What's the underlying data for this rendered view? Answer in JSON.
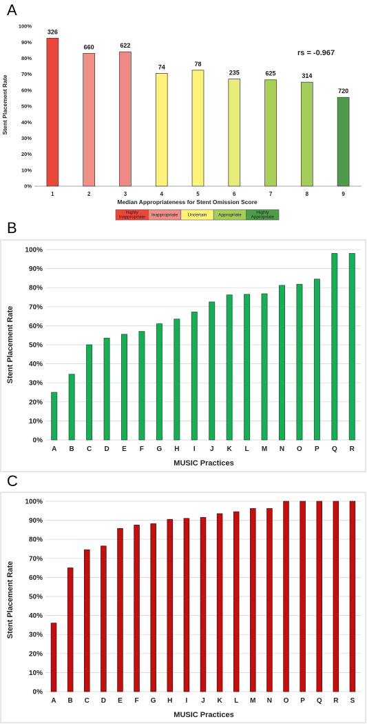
{
  "chart_data": [
    {
      "panel_label": "A",
      "type": "bar",
      "categories": [
        "1",
        "2",
        "3",
        "4",
        "5",
        "6",
        "7",
        "8",
        "9"
      ],
      "values": [
        0.925,
        0.83,
        0.84,
        0.705,
        0.725,
        0.67,
        0.665,
        0.65,
        0.555
      ],
      "bar_labels": [
        "326",
        "660",
        "622",
        "74",
        "78",
        "235",
        "625",
        "314",
        "720"
      ],
      "bar_colors": [
        "#e8473a",
        "#ee8f88",
        "#ee8a86",
        "#fdf37a",
        "#fdf37a",
        "#e6ec7c",
        "#aacf56",
        "#a4cb5c",
        "#4e9c4a"
      ],
      "xlabel": "Median Appropriateness for Stent Omission Score",
      "ylabel": "Stent Placement Rate",
      "ylim": [
        0,
        1
      ],
      "yticks": [
        "0%",
        "10%",
        "20%",
        "30%",
        "40%",
        "50%",
        "60%",
        "70%",
        "80%",
        "90%",
        "100%"
      ],
      "annotation": "rs = -0.967",
      "grid": false,
      "legend": [
        {
          "label": "Highly Inappropriate",
          "color": "#e8473a"
        },
        {
          "label": "Inappropriate",
          "color": "#ee8f88"
        },
        {
          "label": "Uncertain",
          "color": "#fdf37a"
        },
        {
          "label": "Appropriate",
          "color": "#a4cb5c"
        },
        {
          "label": "Highly Appropriate",
          "color": "#4e9c4a"
        }
      ]
    },
    {
      "panel_label": "B",
      "type": "bar",
      "categories": [
        "A",
        "B",
        "C",
        "D",
        "E",
        "F",
        "G",
        "H",
        "I",
        "J",
        "K",
        "L",
        "M",
        "N",
        "O",
        "P",
        "Q",
        "R"
      ],
      "values": [
        0.25,
        0.345,
        0.5,
        0.535,
        0.555,
        0.57,
        0.61,
        0.635,
        0.672,
        0.725,
        0.762,
        0.765,
        0.768,
        0.812,
        0.818,
        0.845,
        0.98,
        0.98
      ],
      "bar_color": "#1aad58",
      "xlabel": "MUSIC Practices",
      "ylabel": "Stent Placement Rate",
      "ylim": [
        0,
        1
      ],
      "yticks": [
        "0%",
        "10%",
        "20%",
        "30%",
        "40%",
        "50%",
        "60%",
        "70%",
        "80%",
        "90%",
        "100%"
      ],
      "grid": true
    },
    {
      "panel_label": "C",
      "type": "bar",
      "categories": [
        "A",
        "B",
        "C",
        "D",
        "E",
        "F",
        "G",
        "H",
        "I",
        "J",
        "K",
        "L",
        "M",
        "N",
        "O",
        "P",
        "Q",
        "R",
        "S"
      ],
      "values": [
        0.36,
        0.65,
        0.745,
        0.765,
        0.857,
        0.875,
        0.882,
        0.905,
        0.91,
        0.915,
        0.935,
        0.945,
        0.962,
        0.962,
        1.0,
        1.0,
        1.0,
        1.0,
        1.0
      ],
      "bar_color": "#c0100f",
      "xlabel": "MUSIC Practices",
      "ylabel": "Stent Placement Rate",
      "ylim": [
        0,
        1
      ],
      "yticks": [
        "0%",
        "10%",
        "20%",
        "30%",
        "40%",
        "50%",
        "60%",
        "70%",
        "80%",
        "90%",
        "100%"
      ],
      "grid": true
    }
  ]
}
